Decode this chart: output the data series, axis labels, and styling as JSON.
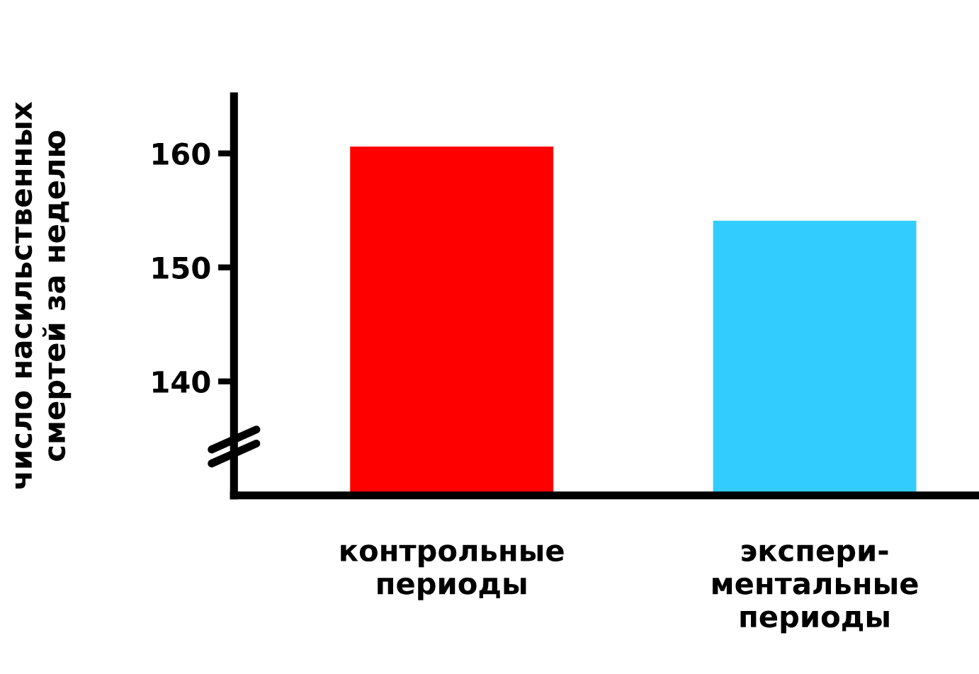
{
  "chart_data": {
    "type": "bar",
    "ylabel": "число насильственных\nсмертей за неделю",
    "categories": [
      "контрольные\nпериоды",
      "экспери-\nментальные\nпериоды"
    ],
    "values": [
      160.6,
      154.1
    ],
    "colors": [
      "#ff0000",
      "#33ccff"
    ],
    "ylim": [
      130,
      165
    ],
    "yticks": [
      140,
      150,
      160
    ],
    "grid": false,
    "legend": false
  }
}
